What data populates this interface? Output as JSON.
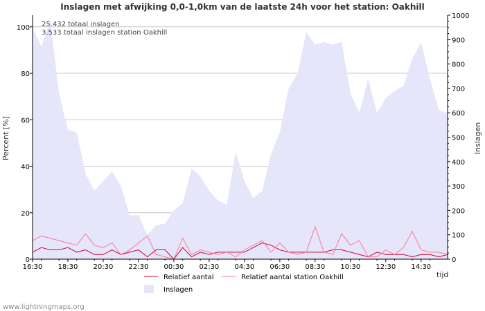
{
  "chart_data": {
    "type": "line",
    "title": "Inslagen met afwijking 0,0-1,0km van de laatste 24h voor het station: Oakhill",
    "annotations": [
      "25.432 totaal inslagen",
      "3.533 totaal inslagen station Oakhill"
    ],
    "xlabel": "tijd",
    "ylabel_left": "Percent   [%]",
    "ylabel_right": "Inslagen",
    "ylim_left": [
      0,
      105
    ],
    "ylim_right": [
      0,
      1000
    ],
    "xlim": [
      0,
      47
    ],
    "x_ticks": [
      {
        "x": 0,
        "label": "16:30"
      },
      {
        "x": 4,
        "label": "18:30"
      },
      {
        "x": 8,
        "label": "20:30"
      },
      {
        "x": 12,
        "label": "22:30"
      },
      {
        "x": 16,
        "label": "00:30"
      },
      {
        "x": 20,
        "label": "02:30"
      },
      {
        "x": 24,
        "label": "04:30"
      },
      {
        "x": 28,
        "label": "06:30"
      },
      {
        "x": 32,
        "label": "08:30"
      },
      {
        "x": 36,
        "label": "10:30"
      },
      {
        "x": 40,
        "label": "12:30"
      },
      {
        "x": 44,
        "label": "14:30"
      }
    ],
    "y_ticks_left": [
      0,
      20,
      40,
      60,
      80,
      100
    ],
    "y_ticks_right": [
      0,
      100,
      200,
      300,
      400,
      500,
      600,
      700,
      800,
      900,
      1000
    ],
    "series": [
      {
        "name": "Inslagen",
        "axis": "right",
        "style": "area",
        "color": "#e6e6fa",
        "values": [
          950,
          870,
          980,
          680,
          530,
          520,
          350,
          280,
          320,
          360,
          300,
          180,
          180,
          100,
          140,
          145,
          200,
          230,
          370,
          340,
          280,
          240,
          225,
          440,
          320,
          250,
          280,
          430,
          520,
          700,
          760,
          930,
          880,
          890,
          880,
          890,
          680,
          600,
          740,
          600,
          660,
          690,
          710,
          820,
          890,
          740,
          610,
          600
        ]
      },
      {
        "name": "Relatief aantal",
        "axis": "left",
        "style": "line",
        "color": "#cc0033",
        "values": [
          3,
          5,
          4,
          4,
          5,
          3,
          4,
          2,
          2,
          4,
          2,
          3,
          4,
          1,
          4,
          4,
          0,
          5,
          1,
          3,
          2,
          3,
          3,
          3,
          3,
          5,
          7,
          6,
          4,
          3,
          3,
          3,
          3,
          3,
          4,
          4,
          3,
          2,
          1,
          3,
          2,
          2,
          2,
          1,
          2,
          2,
          1,
          2
        ]
      },
      {
        "name": "Relatief aantal station Oakhill",
        "axis": "left",
        "style": "line",
        "color": "#ff7799",
        "values": [
          8,
          10,
          9,
          8,
          7,
          6,
          11,
          6,
          5,
          7,
          2,
          4,
          7,
          10,
          2,
          1,
          0,
          9,
          2,
          4,
          3,
          2,
          3,
          1,
          4,
          6,
          8,
          3,
          7,
          3,
          2,
          3,
          14,
          3,
          2,
          11,
          6,
          8,
          1,
          1,
          4,
          2,
          5,
          12,
          4,
          3,
          3,
          2
        ]
      }
    ],
    "legend": {
      "placement": "bottom",
      "entries": [
        {
          "label": "Relatief aantal",
          "kind": "line",
          "color": "#cc0033"
        },
        {
          "label": "Relatief aantal station Oakhill",
          "kind": "line",
          "color": "#ff7799"
        },
        {
          "label": "Inslagen",
          "kind": "area",
          "color": "#e6e6fa"
        }
      ]
    },
    "grid": true,
    "credit": "www.lightningmaps.org"
  }
}
